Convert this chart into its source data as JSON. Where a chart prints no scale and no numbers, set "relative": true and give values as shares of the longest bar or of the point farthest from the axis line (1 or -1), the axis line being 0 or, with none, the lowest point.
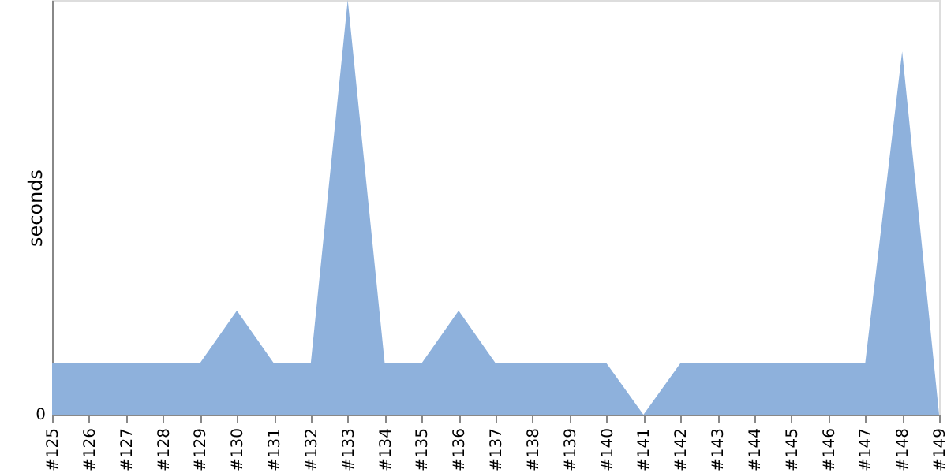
{
  "chart_data": {
    "type": "area",
    "ylabel": "seconds",
    "relative": true,
    "annotations": [
      "0"
    ],
    "grid": false,
    "categories": [
      "#125",
      "#126",
      "#127",
      "#128",
      "#129",
      "#130",
      "#131",
      "#132",
      "#133",
      "#134",
      "#135",
      "#136",
      "#137",
      "#138",
      "#139",
      "#140",
      "#141",
      "#142",
      "#143",
      "#144",
      "#145",
      "#146",
      "#147",
      "#148",
      "#149"
    ],
    "series": [
      {
        "color": "#8eb1dc",
        "values": [
          0.124,
          0.124,
          0.124,
          0.124,
          0.124,
          0.251,
          0.124,
          0.124,
          1,
          0.124,
          0.124,
          0.251,
          0.124,
          0.124,
          0.124,
          0.124,
          0,
          0.124,
          0.124,
          0.124,
          0.124,
          0.124,
          0.124,
          0.876,
          0
        ]
      }
    ]
  }
}
